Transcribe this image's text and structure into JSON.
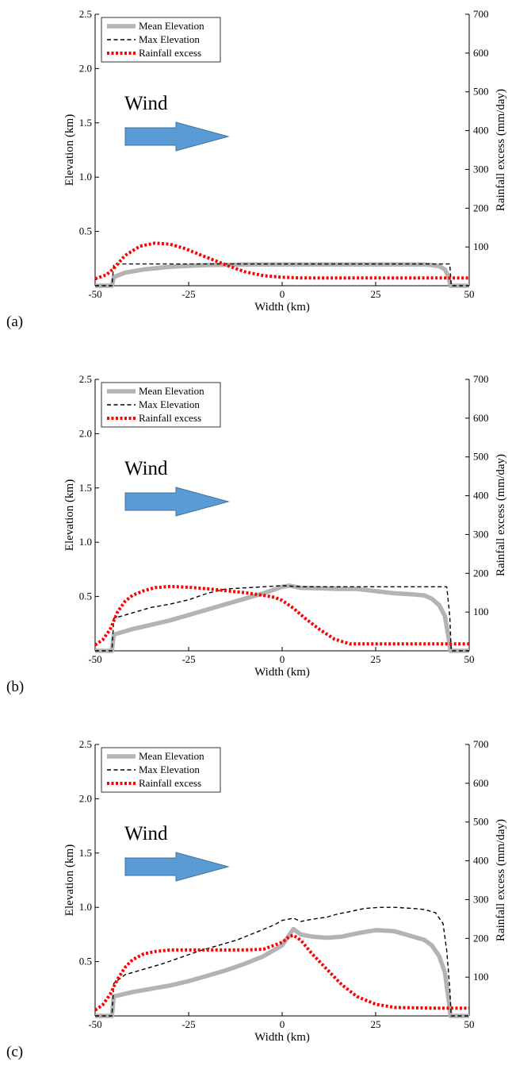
{
  "colors": {
    "mean_elevation": "#b3b3b3",
    "max_elevation": "#000000",
    "rainfall_excess": "#ff0000",
    "wind_arrow_fill": "#5b9bd5",
    "wind_arrow_stroke": "#41719c"
  },
  "wind_label": "Wind",
  "wind_icon": "right-arrow-icon",
  "chart_data": [
    {
      "type": "line",
      "panel_label": "(a)",
      "xlabel": "Width (km)",
      "ylabel": "Elevation (km)",
      "y2label": "Rainfall excess (mm/day)",
      "xlim": [
        -50,
        50
      ],
      "ylim": [
        0,
        2.5
      ],
      "y2lim": [
        0,
        700
      ],
      "xticks": [
        -50,
        -25,
        0,
        25,
        50
      ],
      "yticks": [
        0.5,
        1.0,
        1.5,
        2.0,
        2.5
      ],
      "y2ticks": [
        100,
        200,
        300,
        400,
        500,
        600,
        700
      ],
      "xtick_labels": [
        "-50",
        "-25",
        "0",
        "25",
        "50"
      ],
      "ytick_labels": [
        "0.5",
        "1.0",
        "1.5",
        "2.0",
        "2.5"
      ],
      "y2tick_labels": [
        "100",
        "200",
        "300",
        "400",
        "500",
        "600",
        "700"
      ],
      "grid": false,
      "legend_position": "top-left",
      "series": [
        {
          "name": "Mean Elevation",
          "axis": "left",
          "style": "solid-thick",
          "x": [
            -50,
            -45.5,
            -45,
            -42,
            -37,
            -30,
            -20,
            -10,
            0,
            10,
            20,
            30,
            38,
            40,
            42,
            43.5,
            44.5,
            45,
            50
          ],
          "y": [
            0,
            0,
            0.08,
            0.12,
            0.15,
            0.175,
            0.19,
            0.195,
            0.195,
            0.195,
            0.195,
            0.195,
            0.195,
            0.19,
            0.18,
            0.15,
            0.08,
            0,
            0
          ]
        },
        {
          "name": "Max Elevation",
          "axis": "left",
          "style": "dashed",
          "x": [
            -50,
            -45.5,
            -45,
            44,
            44.8,
            45.2,
            50
          ],
          "y": [
            0,
            0,
            0.2,
            0.2,
            0.2,
            0,
            0
          ]
        },
        {
          "name": "Rainfall excess",
          "axis": "right",
          "style": "dotted",
          "x": [
            -50,
            -47,
            -45,
            -42,
            -38,
            -34,
            -30,
            -26,
            -22,
            -18,
            -14,
            -10,
            -5,
            0,
            5,
            10,
            15,
            20,
            30,
            40,
            50
          ],
          "y": [
            18,
            28,
            45,
            78,
            102,
            110,
            107,
            96,
            80,
            65,
            50,
            36,
            26,
            22,
            20,
            20,
            20,
            20,
            20,
            20,
            20
          ]
        }
      ]
    },
    {
      "type": "line",
      "panel_label": "(b)",
      "xlabel": "Width (km)",
      "ylabel": "Elevation (km)",
      "y2label": "Rainfall excess (mm/day)",
      "xlim": [
        -50,
        50
      ],
      "ylim": [
        0,
        2.5
      ],
      "y2lim": [
        0,
        700
      ],
      "xticks": [
        -50,
        -25,
        0,
        25,
        50
      ],
      "yticks": [
        0.5,
        1.0,
        1.5,
        2.0,
        2.5
      ],
      "y2ticks": [
        100,
        200,
        300,
        400,
        500,
        600,
        700
      ],
      "xtick_labels": [
        "-50",
        "-25",
        "0",
        "25",
        "50"
      ],
      "ytick_labels": [
        "0.5",
        "1.0",
        "1.5",
        "2.0",
        "2.5"
      ],
      "y2tick_labels": [
        "100",
        "200",
        "300",
        "400",
        "500",
        "600",
        "700"
      ],
      "grid": false,
      "legend_position": "top-left",
      "series": [
        {
          "name": "Mean Elevation",
          "axis": "left",
          "style": "solid-thick",
          "x": [
            -50,
            -45.5,
            -45,
            -40,
            -35,
            -30,
            -25,
            -20,
            -15,
            -10,
            -5,
            0,
            2,
            5,
            10,
            15,
            20,
            25,
            30,
            35,
            38,
            40,
            42,
            43.5,
            44.5,
            45,
            50
          ],
          "y": [
            0,
            0,
            0.15,
            0.2,
            0.24,
            0.28,
            0.33,
            0.38,
            0.43,
            0.48,
            0.53,
            0.59,
            0.6,
            0.58,
            0.575,
            0.57,
            0.57,
            0.55,
            0.53,
            0.52,
            0.51,
            0.48,
            0.42,
            0.32,
            0.12,
            0,
            0
          ]
        },
        {
          "name": "Max Elevation",
          "axis": "left",
          "style": "dashed",
          "x": [
            -50,
            -45.5,
            -45,
            -42,
            -38,
            -35,
            -30,
            -25,
            -20,
            -15,
            -10,
            -5,
            0,
            5,
            10,
            20,
            30,
            40,
            44,
            44.8,
            45.2,
            50
          ],
          "y": [
            0,
            0,
            0.3,
            0.33,
            0.37,
            0.4,
            0.43,
            0.47,
            0.53,
            0.57,
            0.58,
            0.59,
            0.6,
            0.59,
            0.59,
            0.59,
            0.59,
            0.59,
            0.59,
            0.32,
            0,
            0
          ]
        },
        {
          "name": "Rainfall excess",
          "axis": "right",
          "style": "dotted",
          "x": [
            -50,
            -48,
            -46,
            -44,
            -42,
            -40,
            -37,
            -34,
            -30,
            -25,
            -20,
            -15,
            -10,
            -5,
            -2,
            0,
            3,
            6,
            10,
            14,
            18,
            25,
            35,
            50
          ],
          "y": [
            15,
            28,
            55,
            100,
            128,
            143,
            155,
            163,
            166,
            164,
            160,
            155,
            150,
            143,
            138,
            130,
            110,
            85,
            55,
            30,
            18,
            18,
            18,
            18
          ]
        }
      ]
    },
    {
      "type": "line",
      "panel_label": "(c)",
      "xlabel": "Width (km)",
      "ylabel": "Elevation (km)",
      "y2label": "Rainfall excess (mm/day)",
      "xlim": [
        -50,
        50
      ],
      "ylim": [
        0,
        2.5
      ],
      "y2lim": [
        0,
        700
      ],
      "xticks": [
        -50,
        -25,
        0,
        25,
        50
      ],
      "yticks": [
        0.5,
        1.0,
        1.5,
        2.0,
        2.5
      ],
      "y2ticks": [
        100,
        200,
        300,
        400,
        500,
        600,
        700
      ],
      "xtick_labels": [
        "-50",
        "-25",
        "0",
        "25",
        "50"
      ],
      "ytick_labels": [
        "0.5",
        "1.0",
        "1.5",
        "2.0",
        "2.5"
      ],
      "y2tick_labels": [
        "100",
        "200",
        "300",
        "400",
        "500",
        "600",
        "700"
      ],
      "grid": false,
      "legend_position": "top-left",
      "series": [
        {
          "name": "Mean Elevation",
          "axis": "left",
          "style": "solid-thick",
          "x": [
            -50,
            -45.5,
            -45,
            -40,
            -35,
            -30,
            -25,
            -20,
            -15,
            -10,
            -5,
            0,
            3,
            5,
            8,
            12,
            16,
            20,
            25,
            30,
            35,
            38,
            40,
            42,
            43.5,
            44.5,
            45,
            50
          ],
          "y": [
            0,
            0,
            0.18,
            0.22,
            0.25,
            0.28,
            0.32,
            0.37,
            0.42,
            0.48,
            0.55,
            0.65,
            0.8,
            0.75,
            0.73,
            0.72,
            0.73,
            0.76,
            0.79,
            0.78,
            0.73,
            0.7,
            0.65,
            0.55,
            0.4,
            0.15,
            0,
            0
          ]
        },
        {
          "name": "Max Elevation",
          "axis": "left",
          "style": "dashed",
          "x": [
            -50,
            -45.5,
            -45,
            -42,
            -37,
            -32,
            -27,
            -22,
            -17,
            -12,
            -7,
            -2,
            0,
            3,
            5,
            8,
            12,
            15,
            18,
            22,
            26,
            30,
            35,
            38,
            41,
            43,
            44,
            44.8,
            45.2,
            50
          ],
          "y": [
            0,
            0,
            0.3,
            0.38,
            0.43,
            0.48,
            0.54,
            0.6,
            0.65,
            0.7,
            0.77,
            0.84,
            0.88,
            0.9,
            0.87,
            0.89,
            0.91,
            0.94,
            0.96,
            0.99,
            1.0,
            1.0,
            0.99,
            0.98,
            0.95,
            0.85,
            0.6,
            0.25,
            0,
            0
          ]
        },
        {
          "name": "Rainfall excess",
          "axis": "right",
          "style": "dotted",
          "x": [
            -50,
            -48,
            -46,
            -44,
            -42,
            -40,
            -37,
            -34,
            -30,
            -25,
            -20,
            -15,
            -10,
            -5,
            0,
            2,
            3,
            5,
            8,
            12,
            16,
            20,
            25,
            30,
            40,
            50
          ],
          "y": [
            15,
            28,
            55,
            95,
            125,
            145,
            160,
            166,
            170,
            170,
            170,
            170,
            170,
            172,
            190,
            205,
            208,
            195,
            160,
            120,
            80,
            50,
            30,
            22,
            20,
            20
          ]
        }
      ]
    }
  ]
}
